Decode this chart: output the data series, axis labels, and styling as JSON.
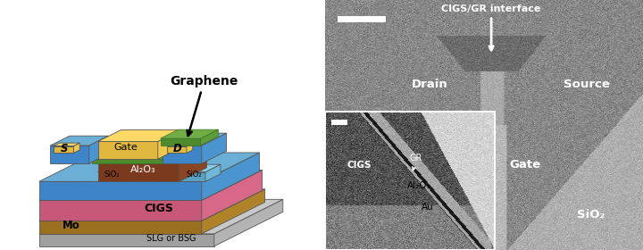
{
  "left_labels": {
    "graphene": "Graphene",
    "S": "S",
    "D": "D",
    "Gate": "Gate",
    "Al2O3": "Al₂O₃",
    "SiO2_right": "SiO₂",
    "SiO2_bottom": "SiO₂",
    "CIGS": "CIGS",
    "Mo": "Mo",
    "SLG": "SLG or BSG"
  },
  "right_labels": {
    "SiO2": "SiO₂",
    "Gate": "Gate",
    "Drain": "Drain",
    "Source": "Source",
    "CIGS_GR": "CIGS/GR interface",
    "Au": "Au",
    "Al2O3": "Al₂O₃",
    "CIGS_inset": "CIGS",
    "GR_inset": "GR"
  },
  "colors": {
    "blue_top": "#6BAED6",
    "blue_front": "#3D85C8",
    "blue_side": "#4A94D0",
    "green_top": "#70AD47",
    "green_front": "#4E8A2E",
    "green_side": "#5E9E3A",
    "yellow_top": "#FFD966",
    "yellow_front": "#E0B840",
    "yellow_side": "#EFC850",
    "brown_top": "#A0522D",
    "brown_front": "#7B3A1E",
    "brown_side": "#8B4523",
    "pink_top": "#E87FA0",
    "pink_front": "#C85878",
    "pink_side": "#D86888",
    "tan_top": "#C4973A",
    "tan_front": "#9A7020",
    "tan_side": "#B0832A",
    "slg_top": "#C8C8C8",
    "slg_front": "#A0A0A0",
    "slg_side": "#B4B4B4",
    "sio2_top": "#87CEEB",
    "sio2_front": "#5AA0C0",
    "sio2_side": "#70B8D8"
  }
}
